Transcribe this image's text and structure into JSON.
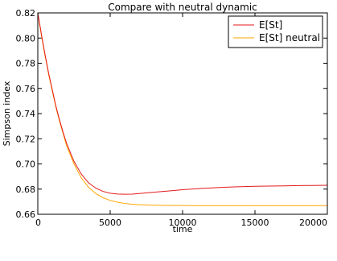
{
  "chart_data": {
    "type": "line",
    "title": "Compare with neutral dynamic",
    "xlabel": "time",
    "ylabel": "Simpson index",
    "xlim": [
      0,
      20000
    ],
    "ylim": [
      0.66,
      0.82
    ],
    "xticks": [
      0,
      5000,
      10000,
      15000,
      20000
    ],
    "xtick_labels": [
      "0",
      "5000",
      "10000",
      "15000",
      "20000"
    ],
    "yticks": [
      0.66,
      0.68,
      0.7,
      0.72,
      0.74,
      0.76,
      0.78,
      0.8,
      0.82
    ],
    "ytick_labels": [
      "0.66",
      "0.68",
      "0.70",
      "0.72",
      "0.74",
      "0.76",
      "0.78",
      "0.80",
      "0.82"
    ],
    "grid": false,
    "legend_position": "top-right",
    "series": [
      {
        "name": "E[St]",
        "color": "#e41a1c",
        "x": [
          0,
          250,
          500,
          750,
          1000,
          1250,
          1500,
          1750,
          2000,
          2500,
          3000,
          3500,
          4000,
          4500,
          5000,
          5500,
          6000,
          6500,
          7000,
          8000,
          9000,
          10000,
          11000,
          12000,
          13000,
          14000,
          15000,
          16000,
          17000,
          18000,
          19000,
          20000
        ],
        "y": [
          0.82,
          0.803,
          0.787,
          0.772,
          0.759,
          0.746,
          0.735,
          0.725,
          0.716,
          0.702,
          0.692,
          0.685,
          0.6808,
          0.6782,
          0.6767,
          0.6761,
          0.6759,
          0.676,
          0.6765,
          0.6775,
          0.6785,
          0.6795,
          0.6803,
          0.681,
          0.6815,
          0.6819,
          0.6822,
          0.6824,
          0.6826,
          0.6828,
          0.6829,
          0.683
        ]
      },
      {
        "name": "E[St] neutral",
        "color": "#ffa500",
        "x": [
          0,
          250,
          500,
          750,
          1000,
          1250,
          1500,
          1750,
          2000,
          2500,
          3000,
          3500,
          4000,
          4500,
          5000,
          5500,
          6000,
          6500,
          7000,
          8000,
          9000,
          10000,
          11000,
          12000,
          13000,
          14000,
          15000,
          16000,
          17000,
          18000,
          19000,
          20000
        ],
        "y": [
          0.82,
          0.802,
          0.786,
          0.771,
          0.758,
          0.745,
          0.734,
          0.724,
          0.714,
          0.7,
          0.689,
          0.6815,
          0.6765,
          0.6732,
          0.671,
          0.6696,
          0.6686,
          0.668,
          0.6676,
          0.6672,
          0.667,
          0.66695,
          0.6669,
          0.6669,
          0.6669,
          0.6669,
          0.6669,
          0.6669,
          0.6669,
          0.6669,
          0.6669,
          0.6669
        ]
      }
    ]
  }
}
